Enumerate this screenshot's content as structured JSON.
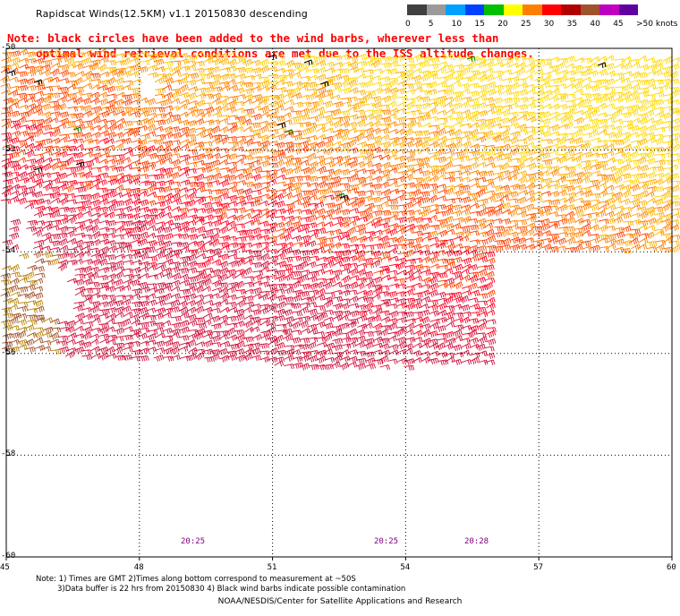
{
  "title": "Rapidscat Winds(12.5KM) v1.1 20150830 descending",
  "note": {
    "line1": "Note: black circles have been added to the wind barbs, wherever less than",
    "line2": "optimal wind retrieval conditions are met due to the ISS altitude changes."
  },
  "colorbar": {
    "labels": [
      "0",
      "5",
      "10",
      "15",
      "20",
      "25",
      "30",
      "35",
      "40",
      "45",
      ">50 knots"
    ],
    "colors": [
      "#404040",
      "#9a9a9a",
      "#00a0ff",
      "#0040ff",
      "#00c000",
      "#ffff00",
      "#ff8000",
      "#ff0000",
      "#b00000",
      "#a0522d",
      "#c000c0",
      "#6000a0"
    ]
  },
  "axes": {
    "x_ticks": [
      "45",
      "48",
      "51",
      "54",
      "57",
      "60"
    ],
    "y_ticks": [
      "-50",
      "-52",
      "-54",
      "-56",
      "-58",
      "-60"
    ],
    "lon_range": [
      45,
      60
    ],
    "lat_range": [
      -60,
      -50
    ]
  },
  "time_labels": [
    "20:25",
    "20:25",
    "20:28"
  ],
  "footnote": {
    "line1": "Note: 1) Times are GMT 2)Times along bottom correspond to measurement at ~50S",
    "line2": "3)Data buffer is 22 hrs from 20150830 4) Black wind barbs indicate possible contamination"
  },
  "credit": "NOAA/NESDIS/Center for Satellite Applications and Research"
}
